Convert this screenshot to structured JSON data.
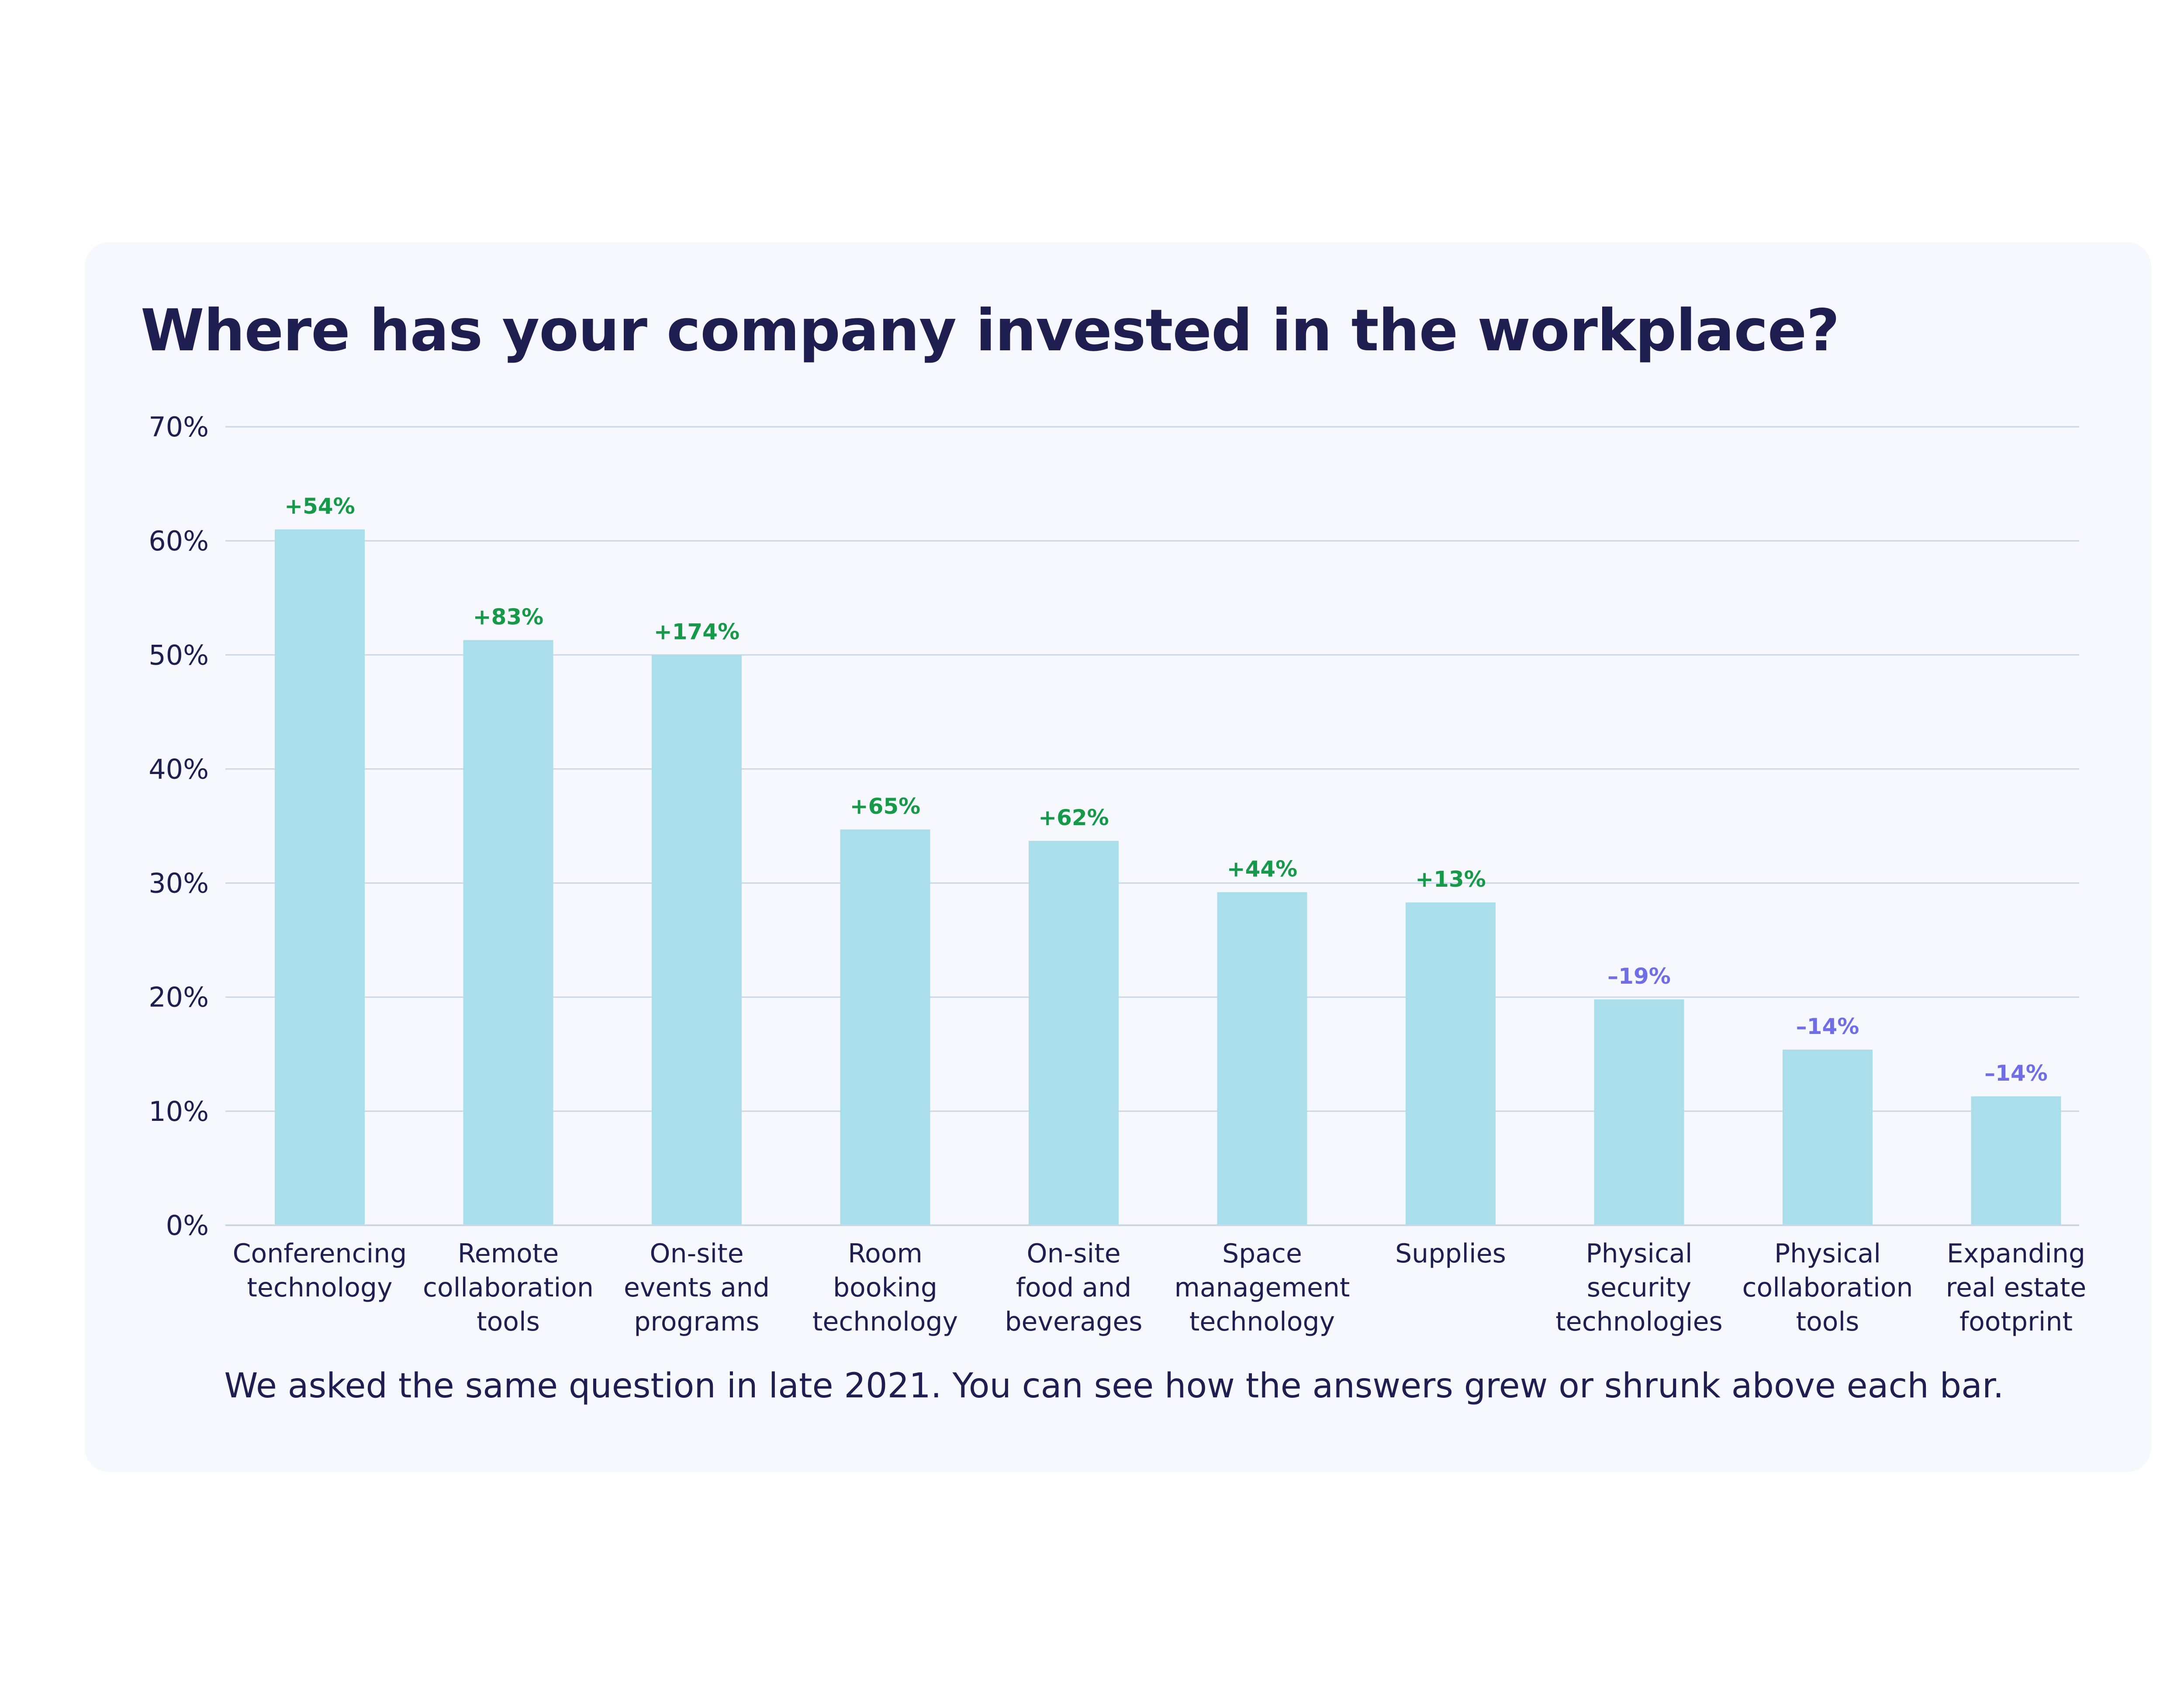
{
  "colors": {
    "bar": "#aadeeb",
    "gridline": "#c9d7e8",
    "text": "#1e1e50",
    "positive_change": "#17994a",
    "negative_change": "#6f6ee6",
    "card_background": "#f7f8fd"
  },
  "chart_data": {
    "type": "bar",
    "title": "Where has your company invested in the workplace?",
    "caption": "We asked the same question in late 2021. You can see how the answers grew or shrunk above each bar.",
    "xlabel": "",
    "ylabel": "",
    "ylim": [
      0,
      70
    ],
    "yticks": [
      0,
      10,
      20,
      30,
      40,
      50,
      60,
      70
    ],
    "ytick_labels": [
      "0%",
      "10%",
      "20%",
      "30%",
      "40%",
      "50%",
      "60%",
      "70%"
    ],
    "grid": true,
    "legend": "none",
    "categories": [
      [
        "Conferencing",
        "technology"
      ],
      [
        "Remote",
        "collaboration",
        "tools"
      ],
      [
        "On-site",
        "events and",
        "programs"
      ],
      [
        "Room",
        "booking",
        "technology"
      ],
      [
        "On-site",
        "food and",
        "beverages"
      ],
      [
        "Space",
        "management",
        "technology"
      ],
      [
        "Supplies"
      ],
      [
        "Physical",
        "security",
        "technologies"
      ],
      [
        "Physical",
        "collaboration",
        "tools"
      ],
      [
        "Expanding",
        "real estate",
        "footprint"
      ]
    ],
    "values": [
      61,
      51.3,
      50,
      34.7,
      33.7,
      29.2,
      28.3,
      19.8,
      15.4,
      11.3
    ],
    "change_labels": [
      "+54%",
      "+83%",
      "+174%",
      "+65%",
      "+62%",
      "+44%",
      "+13%",
      "–19%",
      "–14%",
      "–14%"
    ]
  }
}
